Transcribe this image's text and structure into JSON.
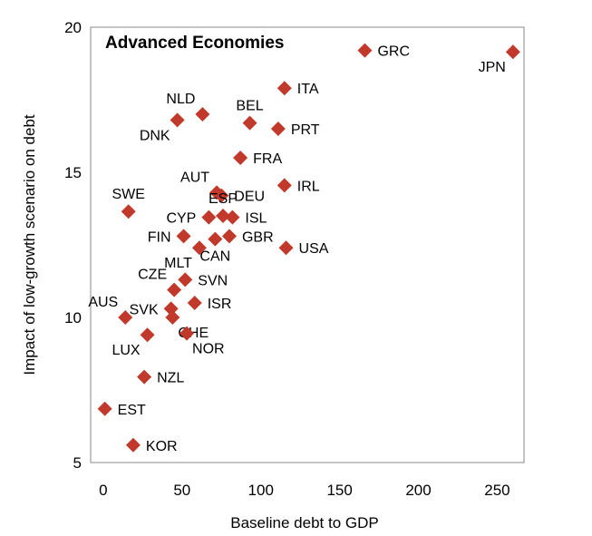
{
  "chart_data": {
    "type": "scatter",
    "title": "Advanced Economies",
    "xlabel": "Baseline debt to GDP",
    "ylabel": "Impact of low-growth scenario on debt",
    "xlim": [
      -8,
      267
    ],
    "ylim": [
      5,
      20
    ],
    "xticks": [
      0,
      50,
      100,
      150,
      200,
      250
    ],
    "yticks": [
      5,
      10,
      15,
      20
    ],
    "grid": false,
    "marker_color": "#C0392B",
    "points": [
      {
        "label": "GRC",
        "x": 166,
        "y": 19.2,
        "label_pos": "right"
      },
      {
        "label": "JPN",
        "x": 260,
        "y": 19.15,
        "label_pos": "bottom-left"
      },
      {
        "label": "ITA",
        "x": 115,
        "y": 17.9,
        "label_pos": "right"
      },
      {
        "label": "NLD",
        "x": 63,
        "y": 17.0,
        "label_pos": "top-left"
      },
      {
        "label": "DNK",
        "x": 47,
        "y": 16.8,
        "label_pos": "bottom-left"
      },
      {
        "label": "BEL",
        "x": 93,
        "y": 16.7,
        "label_pos": "top"
      },
      {
        "label": "PRT",
        "x": 111,
        "y": 16.5,
        "label_pos": "right"
      },
      {
        "label": "FRA",
        "x": 87,
        "y": 15.5,
        "label_pos": "right"
      },
      {
        "label": "IRL",
        "x": 115,
        "y": 14.55,
        "label_pos": "right"
      },
      {
        "label": "AUT",
        "x": 72,
        "y": 14.3,
        "label_pos": "top-left"
      },
      {
        "label": "DEU",
        "x": 75,
        "y": 14.2,
        "label_pos": "right"
      },
      {
        "label": "SWE",
        "x": 16,
        "y": 13.65,
        "label_pos": "top"
      },
      {
        "label": "CYP",
        "x": 67,
        "y": 13.45,
        "label_pos": "left"
      },
      {
        "label": "ESP",
        "x": 76,
        "y": 13.5,
        "label_pos": "top"
      },
      {
        "label": "ISL",
        "x": 82,
        "y": 13.45,
        "label_pos": "right"
      },
      {
        "label": "FIN",
        "x": 51,
        "y": 12.8,
        "label_pos": "left"
      },
      {
        "label": "GBR",
        "x": 80,
        "y": 12.8,
        "label_pos": "right"
      },
      {
        "label": "CAN",
        "x": 71,
        "y": 12.7,
        "label_pos": "bottom"
      },
      {
        "label": "MLT",
        "x": 61,
        "y": 12.4,
        "label_pos": "bottom-left"
      },
      {
        "label": "USA",
        "x": 116,
        "y": 12.4,
        "label_pos": "right"
      },
      {
        "label": "SVN",
        "x": 52,
        "y": 11.3,
        "label_pos": "right"
      },
      {
        "label": "CZE",
        "x": 45,
        "y": 10.95,
        "label_pos": "top-left"
      },
      {
        "label": "ISR",
        "x": 58,
        "y": 10.5,
        "label_pos": "right"
      },
      {
        "label": "SVK",
        "x": 43,
        "y": 10.3,
        "label_pos": "left"
      },
      {
        "label": "AUS",
        "x": 14,
        "y": 10.0,
        "label_pos": "top-left"
      },
      {
        "label": "CHE",
        "x": 44,
        "y": 10.0,
        "label_pos": "bottom-right"
      },
      {
        "label": "LUX",
        "x": 28,
        "y": 9.4,
        "label_pos": "bottom-left"
      },
      {
        "label": "NOR",
        "x": 53,
        "y": 9.45,
        "label_pos": "bottom-right"
      },
      {
        "label": "NZL",
        "x": 26,
        "y": 7.95,
        "label_pos": "right"
      },
      {
        "label": "EST",
        "x": 1,
        "y": 6.85,
        "label_pos": "right"
      },
      {
        "label": "KOR",
        "x": 19,
        "y": 5.6,
        "label_pos": "right"
      }
    ]
  }
}
